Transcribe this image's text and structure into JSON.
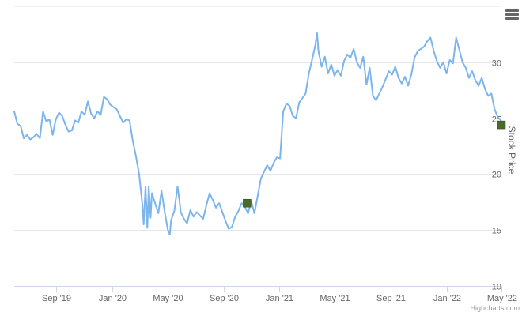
{
  "chart_data": {
    "type": "line",
    "title": "",
    "xlabel": "",
    "ylabel": "Stock Price",
    "ylim": [
      10,
      35
    ],
    "y_ticks": [
      10,
      15,
      20,
      25,
      30
    ],
    "xlim": [
      "2019-06-01",
      "2022-05-01"
    ],
    "x_ticks": [
      {
        "date": "2019-09-01",
        "label": "Sep '19"
      },
      {
        "date": "2020-01-01",
        "label": "Jan '20"
      },
      {
        "date": "2020-05-01",
        "label": "May '20"
      },
      {
        "date": "2020-09-01",
        "label": "Sep '20"
      },
      {
        "date": "2021-01-01",
        "label": "Jan '21"
      },
      {
        "date": "2021-05-01",
        "label": "May '21"
      },
      {
        "date": "2021-09-01",
        "label": "Sep '21"
      },
      {
        "date": "2022-01-01",
        "label": "Jan '22"
      },
      {
        "date": "2022-05-01",
        "label": "May '22"
      }
    ],
    "grid": true,
    "legend": "none",
    "series": [
      {
        "color": "#7cb5ec",
        "points": [
          [
            "2019-06-01",
            25.6
          ],
          [
            "2019-06-08",
            24.5
          ],
          [
            "2019-06-15",
            24.3
          ],
          [
            "2019-06-22",
            23.2
          ],
          [
            "2019-06-29",
            23.5
          ],
          [
            "2019-07-06",
            23.1
          ],
          [
            "2019-07-13",
            23.3
          ],
          [
            "2019-07-20",
            23.6
          ],
          [
            "2019-07-27",
            23.2
          ],
          [
            "2019-08-03",
            25.6
          ],
          [
            "2019-08-10",
            24.7
          ],
          [
            "2019-08-17",
            24.9
          ],
          [
            "2019-08-24",
            23.5
          ],
          [
            "2019-08-31",
            24.9
          ],
          [
            "2019-09-07",
            25.5
          ],
          [
            "2019-09-14",
            25.2
          ],
          [
            "2019-09-21",
            24.4
          ],
          [
            "2019-09-28",
            23.8
          ],
          [
            "2019-10-05",
            23.9
          ],
          [
            "2019-10-12",
            24.8
          ],
          [
            "2019-10-19",
            24.6
          ],
          [
            "2019-10-26",
            25.6
          ],
          [
            "2019-11-02",
            25.3
          ],
          [
            "2019-11-09",
            26.5
          ],
          [
            "2019-11-16",
            25.4
          ],
          [
            "2019-11-23",
            25.0
          ],
          [
            "2019-11-30",
            25.6
          ],
          [
            "2019-12-07",
            25.3
          ],
          [
            "2019-12-14",
            26.9
          ],
          [
            "2019-12-21",
            26.7
          ],
          [
            "2019-12-28",
            26.2
          ],
          [
            "2020-01-04",
            26.0
          ],
          [
            "2020-01-11",
            25.8
          ],
          [
            "2020-01-18",
            25.2
          ],
          [
            "2020-01-25",
            24.6
          ],
          [
            "2020-02-01",
            24.9
          ],
          [
            "2020-02-08",
            24.8
          ],
          [
            "2020-02-15",
            23.0
          ],
          [
            "2020-02-22",
            21.6
          ],
          [
            "2020-02-29",
            20.0
          ],
          [
            "2020-03-07",
            17.3
          ],
          [
            "2020-03-10",
            15.5
          ],
          [
            "2020-03-14",
            18.9
          ],
          [
            "2020-03-18",
            15.2
          ],
          [
            "2020-03-21",
            18.9
          ],
          [
            "2020-03-25",
            16.1
          ],
          [
            "2020-03-28",
            18.3
          ],
          [
            "2020-04-04",
            17.4
          ],
          [
            "2020-04-11",
            16.5
          ],
          [
            "2020-04-18",
            18.5
          ],
          [
            "2020-04-25",
            16.6
          ],
          [
            "2020-05-02",
            15.0
          ],
          [
            "2020-05-06",
            14.6
          ],
          [
            "2020-05-09",
            15.9
          ],
          [
            "2020-05-16",
            16.7
          ],
          [
            "2020-05-23",
            18.9
          ],
          [
            "2020-05-27",
            17.7
          ],
          [
            "2020-05-30",
            16.6
          ],
          [
            "2020-06-06",
            16.0
          ],
          [
            "2020-06-13",
            15.6
          ],
          [
            "2020-06-20",
            16.8
          ],
          [
            "2020-06-27",
            16.2
          ],
          [
            "2020-07-04",
            16.6
          ],
          [
            "2020-07-11",
            16.3
          ],
          [
            "2020-07-18",
            16.0
          ],
          [
            "2020-07-25",
            17.2
          ],
          [
            "2020-08-01",
            18.3
          ],
          [
            "2020-08-08",
            17.7
          ],
          [
            "2020-08-15",
            17.0
          ],
          [
            "2020-08-22",
            17.4
          ],
          [
            "2020-08-29",
            16.6
          ],
          [
            "2020-09-05",
            15.8
          ],
          [
            "2020-09-12",
            15.1
          ],
          [
            "2020-09-19",
            15.3
          ],
          [
            "2020-09-26",
            16.2
          ],
          [
            "2020-10-03",
            16.7
          ],
          [
            "2020-10-10",
            17.4
          ],
          [
            "2020-10-17",
            17.1
          ],
          [
            "2020-10-24",
            16.5
          ],
          [
            "2020-10-31",
            17.6
          ],
          [
            "2020-11-07",
            16.5
          ],
          [
            "2020-11-14",
            18.0
          ],
          [
            "2020-11-21",
            19.6
          ],
          [
            "2020-11-28",
            20.2
          ],
          [
            "2020-12-05",
            20.8
          ],
          [
            "2020-12-12",
            20.3
          ],
          [
            "2020-12-19",
            21.0
          ],
          [
            "2020-12-26",
            21.5
          ],
          [
            "2021-01-02",
            21.4
          ],
          [
            "2021-01-09",
            25.6
          ],
          [
            "2021-01-16",
            26.3
          ],
          [
            "2021-01-23",
            26.1
          ],
          [
            "2021-01-30",
            25.2
          ],
          [
            "2021-02-06",
            25.0
          ],
          [
            "2021-02-13",
            26.4
          ],
          [
            "2021-02-20",
            26.8
          ],
          [
            "2021-02-27",
            27.2
          ],
          [
            "2021-03-06",
            29.0
          ],
          [
            "2021-03-13",
            30.2
          ],
          [
            "2021-03-20",
            31.5
          ],
          [
            "2021-03-24",
            32.6
          ],
          [
            "2021-03-27",
            31.0
          ],
          [
            "2021-04-03",
            29.6
          ],
          [
            "2021-04-10",
            30.5
          ],
          [
            "2021-04-17",
            29.0
          ],
          [
            "2021-04-24",
            29.8
          ],
          [
            "2021-05-01",
            28.8
          ],
          [
            "2021-05-08",
            29.3
          ],
          [
            "2021-05-15",
            28.8
          ],
          [
            "2021-05-22",
            30.1
          ],
          [
            "2021-05-29",
            30.7
          ],
          [
            "2021-06-05",
            30.4
          ],
          [
            "2021-06-12",
            31.2
          ],
          [
            "2021-06-19",
            30.0
          ],
          [
            "2021-06-26",
            29.5
          ],
          [
            "2021-07-03",
            30.5
          ],
          [
            "2021-07-10",
            28.0
          ],
          [
            "2021-07-17",
            29.5
          ],
          [
            "2021-07-24",
            27.0
          ],
          [
            "2021-07-31",
            26.6
          ],
          [
            "2021-08-07",
            27.2
          ],
          [
            "2021-08-14",
            27.8
          ],
          [
            "2021-08-21",
            28.5
          ],
          [
            "2021-08-28",
            29.2
          ],
          [
            "2021-09-04",
            28.9
          ],
          [
            "2021-09-11",
            29.6
          ],
          [
            "2021-09-18",
            28.6
          ],
          [
            "2021-09-25",
            28.1
          ],
          [
            "2021-10-02",
            28.7
          ],
          [
            "2021-10-09",
            27.9
          ],
          [
            "2021-10-16",
            28.9
          ],
          [
            "2021-10-23",
            30.4
          ],
          [
            "2021-10-30",
            31.0
          ],
          [
            "2021-11-06",
            31.2
          ],
          [
            "2021-11-13",
            31.4
          ],
          [
            "2021-11-20",
            31.9
          ],
          [
            "2021-11-27",
            32.2
          ],
          [
            "2021-12-04",
            31.0
          ],
          [
            "2021-12-11",
            30.1
          ],
          [
            "2021-12-18",
            29.5
          ],
          [
            "2021-12-25",
            30.0
          ],
          [
            "2022-01-01",
            29.0
          ],
          [
            "2022-01-08",
            30.2
          ],
          [
            "2022-01-15",
            29.9
          ],
          [
            "2022-01-22",
            32.2
          ],
          [
            "2022-01-29",
            31.1
          ],
          [
            "2022-02-05",
            30.0
          ],
          [
            "2022-02-12",
            29.5
          ],
          [
            "2022-02-19",
            28.6
          ],
          [
            "2022-02-26",
            29.2
          ],
          [
            "2022-03-05",
            28.4
          ],
          [
            "2022-03-12",
            27.9
          ],
          [
            "2022-03-19",
            28.6
          ],
          [
            "2022-03-26",
            27.6
          ],
          [
            "2022-04-02",
            27.0
          ],
          [
            "2022-04-09",
            27.2
          ],
          [
            "2022-04-16",
            25.8
          ],
          [
            "2022-04-23",
            25.1
          ],
          [
            "2022-04-30",
            24.8
          ]
        ]
      }
    ],
    "markers": [
      {
        "date": "2020-10-22",
        "value": 17.4,
        "color": "#4a6b2a"
      },
      {
        "date": "2022-05-01",
        "value": 24.4,
        "color": "#4a6b2a"
      }
    ],
    "credits": "Highcharts.com"
  },
  "menu": {
    "icon": "hamburger-menu-icon"
  }
}
